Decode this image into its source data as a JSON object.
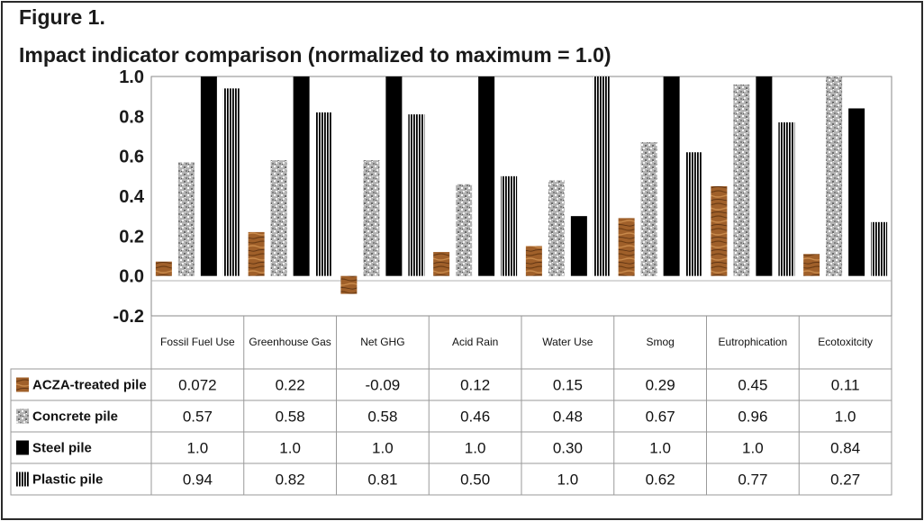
{
  "figure": {
    "label": "Figure 1.",
    "title": "Impact indicator comparison (normalized to maximum = 1.0)"
  },
  "chart_data": {
    "type": "bar",
    "categories": [
      "Fossil Fuel  Use",
      "Greenhouse Gas",
      "Net GHG",
      "Acid Rain",
      "Water Use",
      "Smog",
      "Eutrophication",
      "Ecotoxitcity"
    ],
    "ylim": [
      -0.2,
      1.0
    ],
    "yticks": [
      "-0.2",
      "0.0",
      "0.2",
      "0.4",
      "0.6",
      "0.8",
      "1.0"
    ],
    "grid": false,
    "legend": "data table below chart",
    "series": [
      {
        "name": "ACZA-treated pile",
        "pattern": "wood-grain",
        "color": "#a0602a",
        "values": [
          0.072,
          0.22,
          -0.09,
          0.12,
          0.15,
          0.29,
          0.45,
          0.11
        ],
        "labels": [
          "0.072",
          "0.22",
          "-0.09",
          "0.12",
          "0.15",
          "0.29",
          "0.45",
          "0.11"
        ]
      },
      {
        "name": "Concrete pile",
        "pattern": "granite",
        "color": "#a8a8a8",
        "values": [
          0.57,
          0.58,
          0.58,
          0.46,
          0.48,
          0.67,
          0.96,
          1.0
        ],
        "labels": [
          "0.57",
          "0.58",
          "0.58",
          "0.46",
          "0.48",
          "0.67",
          "0.96",
          "1.0"
        ]
      },
      {
        "name": "Steel pile",
        "pattern": "solid",
        "color": "#000000",
        "values": [
          1.0,
          1.0,
          1.0,
          1.0,
          0.3,
          1.0,
          1.0,
          0.84
        ],
        "labels": [
          "1.0",
          "1.0",
          "1.0",
          "1.0",
          "0.30",
          "1.0",
          "1.0",
          "0.84"
        ]
      },
      {
        "name": "Plastic pile",
        "pattern": "vertical-stripes",
        "color": "#000000",
        "values": [
          0.94,
          0.82,
          0.81,
          0.5,
          1.0,
          0.62,
          0.77,
          0.27
        ],
        "labels": [
          "0.94",
          "0.82",
          "0.81",
          "0.50",
          "1.0",
          "0.62",
          "0.77",
          "0.27"
        ]
      }
    ]
  }
}
